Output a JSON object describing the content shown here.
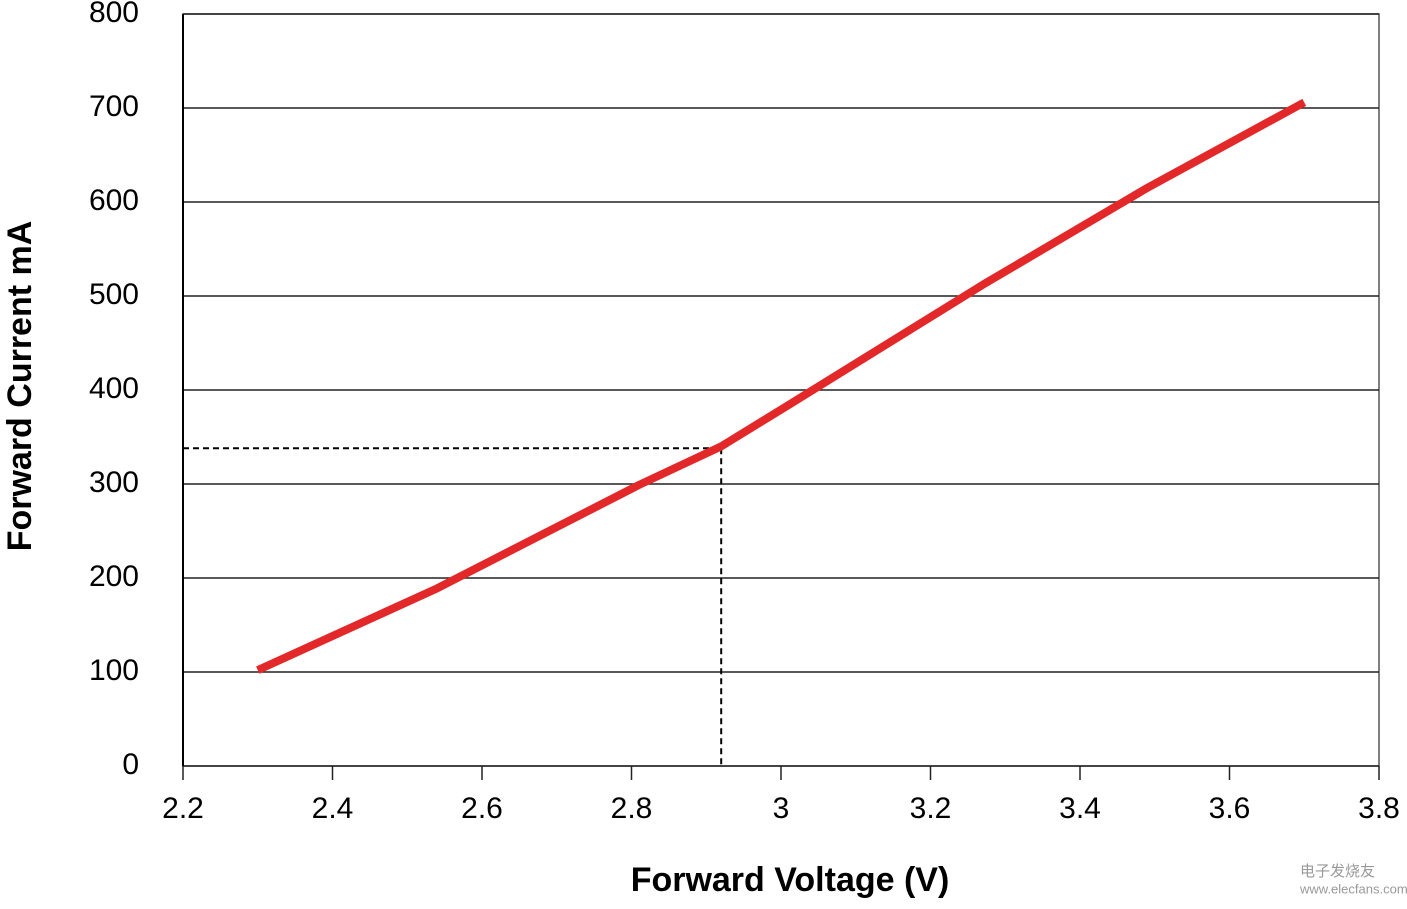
{
  "chart_data": {
    "type": "line",
    "xlabel": "Forward Voltage (V)",
    "ylabel": "Forward Current mA",
    "x": [
      2.3,
      2.54,
      2.81,
      2.92,
      3.01,
      3.27,
      3.49,
      3.7
    ],
    "series": [
      {
        "name": "Forward Current",
        "color": "#e3282a",
        "values": [
          102,
          189,
          299,
          340,
          384,
          512,
          615,
          706
        ]
      }
    ],
    "xlim": [
      2.2,
      3.8
    ],
    "xticks": [
      2.2,
      2.4,
      2.6,
      2.8,
      3,
      3.2,
      3.4,
      3.6,
      3.8
    ],
    "ylim": [
      0,
      800
    ],
    "yticks": [
      0,
      100,
      200,
      300,
      400,
      500,
      600,
      700,
      800
    ],
    "grid": true,
    "reference": {
      "x": 2.92,
      "y": 338
    },
    "watermark": [
      "电子发烧友",
      "www.elecfans.com"
    ]
  }
}
